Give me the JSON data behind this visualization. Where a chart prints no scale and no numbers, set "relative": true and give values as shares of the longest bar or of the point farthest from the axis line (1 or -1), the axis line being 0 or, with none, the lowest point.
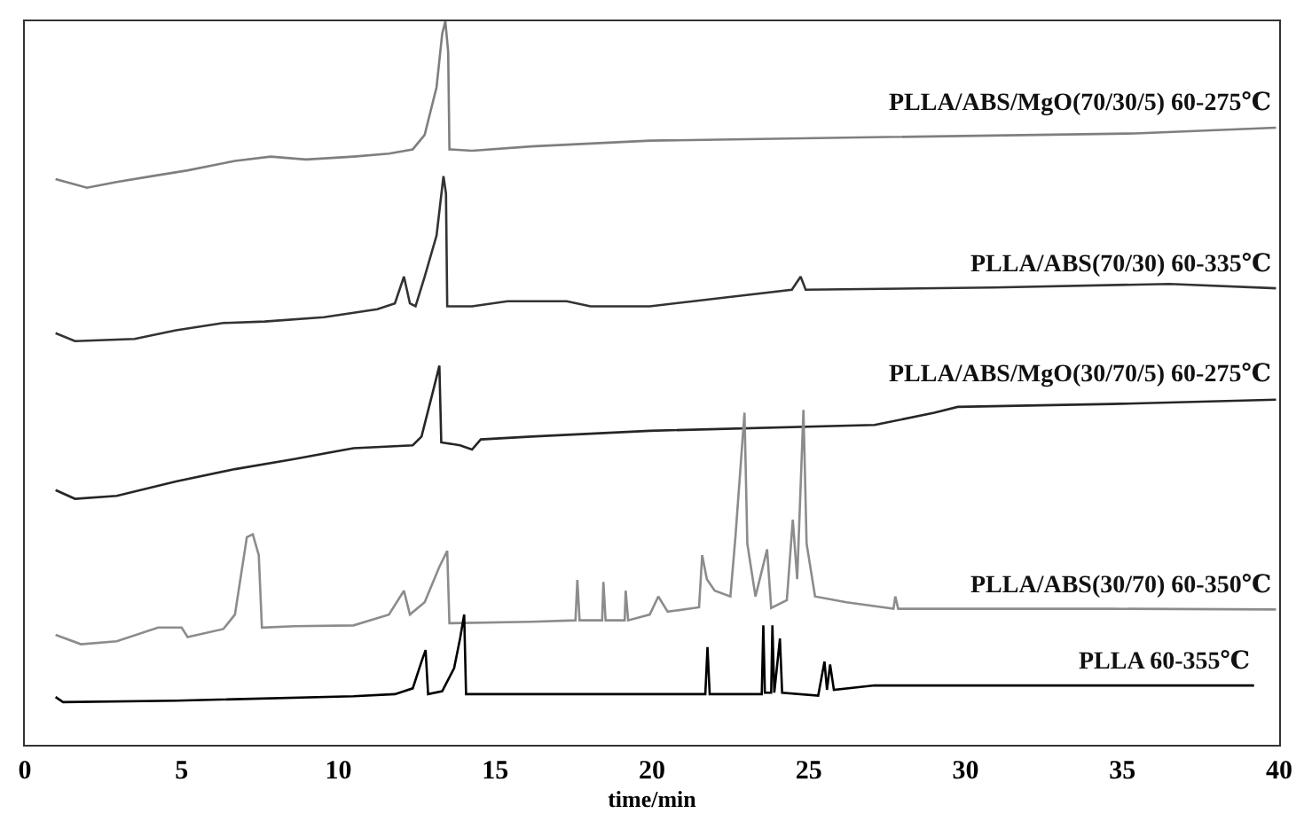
{
  "chart_data": {
    "type": "line",
    "xlabel": "time/min",
    "relative": true,
    "xlim": [
      0,
      40
    ],
    "xticks": [
      0,
      5,
      10,
      15,
      20,
      25,
      30,
      35,
      40
    ],
    "grid": false,
    "legend": false,
    "series": [
      {
        "name": "PLLA/ABS/MgO(70/30/5) 60-275℃",
        "color": "#7f7f7f",
        "x": [
          0.98,
          1.98,
          2.93,
          4.06,
          5.2,
          6.7,
          7.84,
          8.97,
          10.48,
          11.61,
          12.37,
          12.75,
          13.13,
          13.31,
          13.41,
          13.5,
          13.54,
          14.26,
          16.15,
          18.04,
          19.93,
          27.5,
          35.4,
          39.9
        ],
        "values": [
          0.782,
          0.77,
          0.778,
          0.786,
          0.794,
          0.807,
          0.813,
          0.809,
          0.813,
          0.817,
          0.823,
          0.843,
          0.909,
          0.983,
          1.0,
          0.958,
          0.823,
          0.821,
          0.827,
          0.831,
          0.835,
          0.84,
          0.845,
          0.853
        ]
      },
      {
        "name": "PLLA/ABS(70/30) 60-335℃",
        "color": "#333333",
        "x": [
          0.98,
          1.6,
          3.5,
          4.82,
          6.33,
          7.65,
          9.54,
          11.24,
          11.8,
          12.09,
          12.28,
          12.46,
          12.75,
          13.13,
          13.35,
          13.43,
          13.47,
          14.26,
          15.39,
          17.28,
          18.04,
          19.93,
          24.46,
          24.74,
          24.9,
          30.9,
          36.5,
          39.9
        ],
        "values": [
          0.569,
          0.558,
          0.561,
          0.573,
          0.583,
          0.585,
          0.591,
          0.602,
          0.61,
          0.647,
          0.61,
          0.606,
          0.647,
          0.704,
          0.786,
          0.762,
          0.606,
          0.606,
          0.613,
          0.613,
          0.606,
          0.606,
          0.629,
          0.647,
          0.629,
          0.632,
          0.637,
          0.631
        ]
      },
      {
        "name": "PLLA/ABS/MgO(30/70/5) 60-275℃",
        "color": "#262626",
        "x": [
          0.98,
          1.6,
          2.93,
          4.82,
          6.7,
          8.59,
          10.48,
          12.37,
          12.65,
          13.03,
          13.22,
          13.28,
          13.88,
          14.26,
          14.54,
          16.15,
          18.04,
          19.93,
          27.1,
          29,
          29.75,
          34.66,
          39.9
        ],
        "values": [
          0.352,
          0.34,
          0.344,
          0.364,
          0.381,
          0.395,
          0.41,
          0.414,
          0.426,
          0.491,
          0.524,
          0.418,
          0.414,
          0.408,
          0.422,
          0.426,
          0.43,
          0.434,
          0.442,
          0.459,
          0.467,
          0.471,
          0.477
        ]
      },
      {
        "name": "PLLA/ABS(30/70) 60-350℃",
        "color": "#8c8c8c",
        "x": [
          0.98,
          1.79,
          2.93,
          4.25,
          5.0,
          5.19,
          6.33,
          6.7,
          7.08,
          7.27,
          7.46,
          7.56,
          8.59,
          10.48,
          11.61,
          12.09,
          12.28,
          12.75,
          13.22,
          13.47,
          13.54,
          16.15,
          17.56,
          17.62,
          17.69,
          18.41,
          18.45,
          18.52,
          19.13,
          19.16,
          19.24,
          19.93,
          20.2,
          20.5,
          21.5,
          21.6,
          21.75,
          22.0,
          22.5,
          22.66,
          22.95,
          23.04,
          23.3,
          23.67,
          23.8,
          24.3,
          24.49,
          24.63,
          24.83,
          24.93,
          25.2,
          26.2,
          27.7,
          27.76,
          27.85,
          30.9,
          34.66,
          39.9
        ],
        "values": [
          0.152,
          0.139,
          0.143,
          0.162,
          0.162,
          0.149,
          0.16,
          0.18,
          0.287,
          0.291,
          0.262,
          0.162,
          0.164,
          0.165,
          0.18,
          0.213,
          0.18,
          0.197,
          0.246,
          0.268,
          0.168,
          0.17,
          0.172,
          0.228,
          0.172,
          0.172,
          0.225,
          0.172,
          0.172,
          0.213,
          0.172,
          0.18,
          0.205,
          0.184,
          0.19,
          0.262,
          0.229,
          0.213,
          0.205,
          0.287,
          0.459,
          0.278,
          0.205,
          0.27,
          0.189,
          0.2,
          0.311,
          0.229,
          0.463,
          0.278,
          0.205,
          0.197,
          0.188,
          0.205,
          0.188,
          0.188,
          0.188,
          0.187
        ]
      },
      {
        "name": "PLLA 60-355℃",
        "color": "#000000",
        "x": [
          0.98,
          1.22,
          4.82,
          10.48,
          11.8,
          12.37,
          12.65,
          12.78,
          12.86,
          13.31,
          13.69,
          13.88,
          14.01,
          14.07,
          16.15,
          19.93,
          21.7,
          21.77,
          21.84,
          23.5,
          23.55,
          23.6,
          23.8,
          23.84,
          23.9,
          24.08,
          24.15,
          25.3,
          25.5,
          25.58,
          25.68,
          25.8,
          27.1,
          39.2
        ],
        "values": [
          0.066,
          0.059,
          0.061,
          0.067,
          0.07,
          0.078,
          0.115,
          0.131,
          0.07,
          0.074,
          0.106,
          0.147,
          0.18,
          0.07,
          0.07,
          0.07,
          0.07,
          0.135,
          0.07,
          0.07,
          0.165,
          0.072,
          0.072,
          0.165,
          0.072,
          0.147,
          0.072,
          0.068,
          0.115,
          0.076,
          0.111,
          0.076,
          0.082,
          0.082
        ]
      }
    ]
  }
}
